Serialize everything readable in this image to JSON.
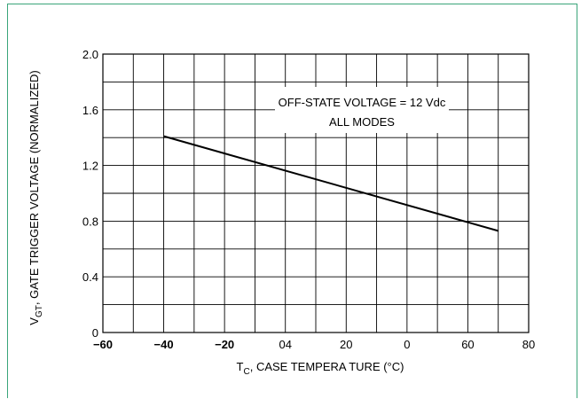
{
  "chart_data": {
    "type": "line",
    "xlabel_main": "T",
    "xlabel_sub": "C",
    "xlabel_rest": ", CASE TEMPERA TURE (°C)",
    "ylabel_main": "V",
    "ylabel_sub": "GT",
    "ylabel_rest": ", GATE TRIGGER VOLTAGE (NORMALIZED)",
    "x_tick_labels": [
      "−60",
      "−40",
      "−20",
      "04",
      "20",
      "0",
      "60",
      "80"
    ],
    "y_tick_labels": [
      "0",
      "0.4",
      "0.8",
      "1.2",
      "1.6",
      "2.0"
    ],
    "xlim": [
      -60,
      80
    ],
    "ylim": [
      0,
      2.0
    ],
    "grid": true,
    "annotation": [
      "OFF-STATE VOLTAGE = 12 Vdc",
      "ALL MODES"
    ],
    "series": [
      {
        "x": [
          -40,
          70
        ],
        "y": [
          1.41,
          0.73
        ]
      }
    ],
    "line_color": "#000000"
  },
  "frame_color": "#3aa57a"
}
